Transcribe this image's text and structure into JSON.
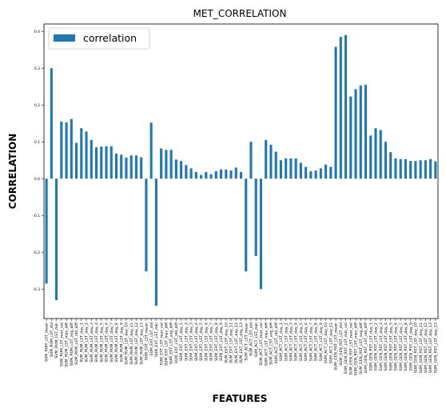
{
  "chart_data": {
    "type": "bar",
    "title": "MET_CORRELATION",
    "xlabel": "FEATURES",
    "ylabel": "CORRELATION",
    "ylim": [
      -0.38,
      0.42
    ],
    "yticks": [
      "-0.3",
      "-0.2",
      "-0.1",
      "0.0",
      "0.1",
      "0.2",
      "0.3",
      "0.4"
    ],
    "yticks_values": [
      -0.3,
      -0.2,
      -0.1,
      0.0,
      0.1,
      0.2,
      0.3,
      0.4
    ],
    "grid": false,
    "legend": {
      "placement": "top-left"
    },
    "color": "#1f77b4",
    "series": [
      {
        "name": "correlation",
        "values": [
          -0.285,
          0.3,
          -0.33,
          0.155,
          0.153,
          0.162,
          0.097,
          0.137,
          0.128,
          0.105,
          0.085,
          0.087,
          0.088,
          0.088,
          0.068,
          0.065,
          0.057,
          0.063,
          0.063,
          0.058,
          -0.252,
          0.152,
          -0.345,
          0.082,
          0.078,
          0.078,
          0.052,
          0.048,
          0.037,
          0.028,
          0.018,
          0.01,
          0.018,
          0.012,
          0.02,
          0.025,
          0.025,
          0.022,
          0.03,
          0.018,
          -0.252,
          0.1,
          -0.21,
          -0.3,
          0.105,
          0.092,
          0.073,
          0.05,
          0.055,
          0.055,
          0.055,
          0.043,
          0.032,
          0.02,
          0.022,
          0.028,
          0.038,
          0.032,
          0.358,
          0.385,
          0.39,
          0.223,
          0.243,
          0.253,
          0.255,
          0.117,
          0.137,
          0.132,
          0.1,
          0.072,
          0.055,
          0.053,
          0.053,
          0.048,
          0.048,
          0.05,
          0.05,
          0.053,
          0.047
        ]
      }
    ],
    "categories": [
      "SUM_RUM_LST_mean",
      "SUM_RUM_LST_std",
      "SUM_RUM_LST_min",
      "SUM_RUM_LST_max_val",
      "SUM_RUM_LST_max_diff",
      "SUM_RUM_LST_avg_diff",
      "SUM_RUM_LST_std_diff",
      "SUM_RUM_LST_day_1",
      "SUM_RUM_LST_day_2",
      "SUM_RUM_LST_day_3",
      "SUM_RUM_LST_day_4",
      "SUM_RUM_LST_day_5",
      "SUM_RUM_LST_day_6",
      "SUM_RUM_LST_day_7",
      "SUM_RUM_LST_day_8",
      "SUM_RUM_LST_day_9",
      "SUM_RUM_LST_day_10",
      "SUM_RUM_LST_day_11",
      "SUM_RUM_LST_day_12",
      "SUM_RUM_LST_day_13",
      "SUM_EXT_LST_mean",
      "SUM_EXT_LST_std",
      "SUM_EXT_LST_min",
      "SUM_EXT_LST_max_val",
      "SUM_EXT_LST_max_diff",
      "SUM_EXT_LST_avg_diff",
      "SUM_EXT_LST_std_diff",
      "SUM_EXT_LST_day_1",
      "SUM_EXT_LST_day_2",
      "SUM_EXT_LST_day_3",
      "SUM_EXT_LST_day_4",
      "SUM_EXT_LST_day_5",
      "SUM_EXT_LST_day_6",
      "SUM_EXT_LST_day_7",
      "SUM_EXT_LST_day_8",
      "SUM_EXT_LST_day_9",
      "SUM_EXT_LST_day_10",
      "SUM_EXT_LST_day_11",
      "SUM_EXT_LST_day_12",
      "SUM_EXT_LST_day_13",
      "SUM_ACT_LST_mean",
      "SUM_ACT_LST_std",
      "SUM_ACT_LST_min",
      "SUM_ACT_LST_max_val",
      "SUM_ACT_LST_max_diff",
      "SUM_ACT_LST_avg_diff",
      "SUM_ACT_LST_std_diff",
      "SUM_ACT_LST_day_1",
      "SUM_ACT_LST_day_2",
      "SUM_ACT_LST_day_3",
      "SUM_ACT_LST_day_4",
      "SUM_ACT_LST_day_5",
      "SUM_ACT_LST_day_6",
      "SUM_ACT_LST_day_7",
      "SUM_ACT_LST_day_8",
      "SUM_ACT_LST_day_9",
      "SUM_ACT_LST_day_10",
      "SUM_ACT_LST_day_11",
      "SUM_GEN_RST_LST_mean",
      "SUM_GEN_RST_LST_std",
      "SUM_GEN_RST_LST_min_val",
      "SUM_GEN_RST_LST_max_val",
      "SUM_GEN_RST_LST_max_diff",
      "SUM_GEN_RST_LST_avg_diff",
      "SUM_GEN_RST_LST_std_diff",
      "SUM_GEN_RST_LST_day_1",
      "SUM_GEN_RST_LST_day_2",
      "SUM_GEN_RST_LST_day_3",
      "SUM_GEN_RST_LST_day_4",
      "SUM_GEN_RST_LST_day_5",
      "SUM_GEN_RST_LST_day_6",
      "SUM_GEN_RST_LST_day_7",
      "SUM_GEN_RST_LST_day_8",
      "SUM_GEN_RST_LST_day_9",
      "SUM_GEN_RST_LST_day_10",
      "SUM_GEN_RST_LST_day_11",
      "SUM_GEN_RST_LST_day_12",
      "SUM_GEN_RST_LST_day_13",
      "SUM_GEN_RST_LST_day_13"
    ]
  }
}
